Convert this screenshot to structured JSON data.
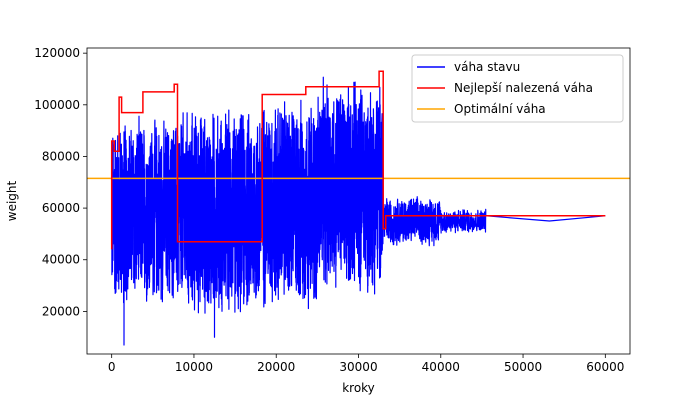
{
  "chart_data": {
    "type": "line",
    "title": "",
    "xlabel": "kroky",
    "ylabel": "weight",
    "xlim": [
      -3000,
      63000
    ],
    "ylim": [
      3500,
      122000
    ],
    "xticks": [
      0,
      10000,
      20000,
      30000,
      40000,
      50000,
      60000
    ],
    "yticks": [
      20000,
      40000,
      60000,
      80000,
      100000,
      120000
    ],
    "xtick_labels": [
      "0",
      "10000",
      "20000",
      "30000",
      "40000",
      "50000",
      "60000"
    ],
    "ytick_labels": [
      "20000",
      "40000",
      "60000",
      "80000",
      "100000",
      "120000"
    ],
    "grid": false,
    "legend_position": "top-right",
    "series": [
      {
        "name": "váha stavu",
        "color": "#0000ff",
        "style": "noisy-envelope",
        "segments": [
          {
            "x_start": 0,
            "x_end": 1500,
            "low": 20000,
            "high": 95000,
            "density": 150
          },
          {
            "x_start": 1500,
            "x_end": 8000,
            "low": 20000,
            "high": 97000,
            "density": 520
          },
          {
            "x_start": 8000,
            "x_end": 18000,
            "low": 15000,
            "high": 101000,
            "density": 800
          },
          {
            "x_start": 18000,
            "x_end": 25000,
            "low": 18000,
            "high": 105000,
            "density": 560
          },
          {
            "x_start": 25000,
            "x_end": 33000,
            "low": 25000,
            "high": 112000,
            "density": 640
          },
          {
            "x_start": 33000,
            "x_end": 40000,
            "low": 45000,
            "high": 65000,
            "density": 420
          },
          {
            "x_start": 40000,
            "x_end": 45500,
            "low": 50000,
            "high": 60000,
            "density": 260
          },
          {
            "x_start": 45500,
            "x_end": 60000,
            "low": 57000,
            "high": 57000,
            "density": 0
          }
        ],
        "spikes": [
          {
            "x": 1500,
            "y": 7000
          },
          {
            "x": 12500,
            "y": 10000
          },
          {
            "x": 53200,
            "y": 55000
          }
        ],
        "final_value": 57000,
        "x_last": 60000
      },
      {
        "name": "Nejlepší nalezená váha",
        "color": "#ff0000",
        "style": "step",
        "points": [
          [
            0,
            44000
          ],
          [
            0,
            86000
          ],
          [
            300,
            86000
          ],
          [
            300,
            82000
          ],
          [
            900,
            82000
          ],
          [
            900,
            103000
          ],
          [
            1200,
            103000
          ],
          [
            1200,
            97000
          ],
          [
            3800,
            97000
          ],
          [
            3800,
            105000
          ],
          [
            7600,
            105000
          ],
          [
            7600,
            108000
          ],
          [
            8000,
            108000
          ],
          [
            8000,
            47000
          ],
          [
            18300,
            47000
          ],
          [
            18300,
            104000
          ],
          [
            23600,
            104000
          ],
          [
            23600,
            107000
          ],
          [
            32500,
            107000
          ],
          [
            32500,
            113000
          ],
          [
            33000,
            113000
          ],
          [
            33000,
            52000
          ],
          [
            33300,
            52000
          ],
          [
            33300,
            57000
          ],
          [
            60000,
            57000
          ]
        ]
      },
      {
        "name": "Optimální váha",
        "color": "#ffa500",
        "style": "hline",
        "value": 71500
      }
    ]
  }
}
